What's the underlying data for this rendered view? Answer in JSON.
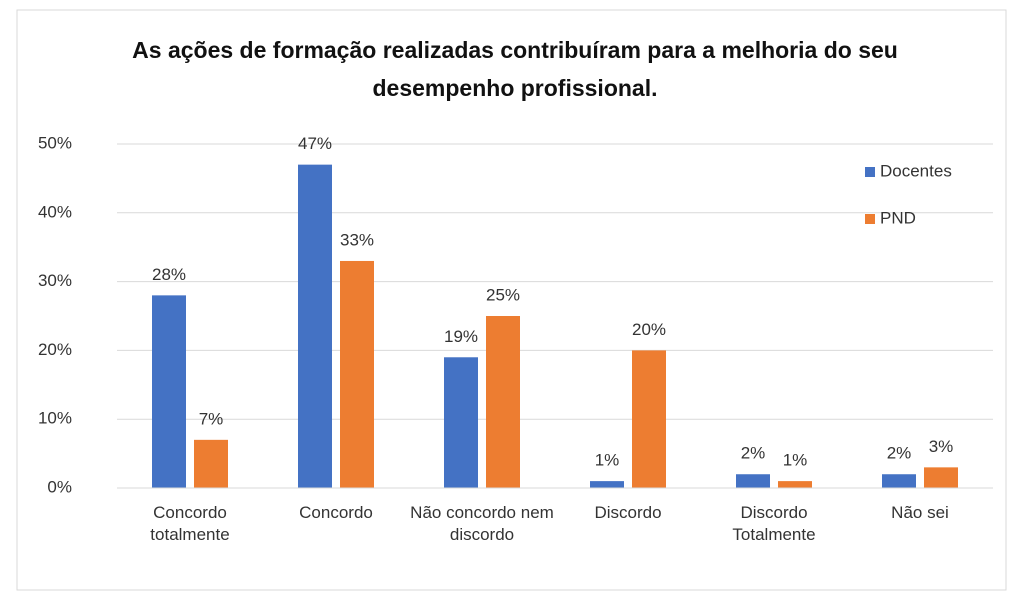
{
  "chart_data": {
    "type": "bar",
    "title": "As ações de formação realizadas contribuíram para a melhoria do seu desempenho profissional.",
    "categories": [
      "Concordo totalmente",
      "Concordo",
      "Não concordo nem discordo",
      "Discordo",
      "Discordo Totalmente",
      "Não sei"
    ],
    "series": [
      {
        "name": "Docentes",
        "color": "#4472c4",
        "values": [
          28,
          47,
          19,
          1,
          2,
          2
        ],
        "value_labels": [
          "28%",
          "47%",
          "19%",
          "1%",
          "2%",
          "2%"
        ]
      },
      {
        "name": "PND",
        "color": "#ed7d31",
        "values": [
          7,
          33,
          25,
          20,
          1,
          3
        ],
        "value_labels": [
          "7%",
          "33%",
          "25%",
          "20%",
          "1%",
          "3%"
        ]
      }
    ],
    "ylim": [
      0,
      50
    ],
    "yticks": [
      {
        "value": 0,
        "label": "0%"
      },
      {
        "value": 10,
        "label": "10%"
      },
      {
        "value": 20,
        "label": "20%"
      },
      {
        "value": 30,
        "label": "30%"
      },
      {
        "value": 40,
        "label": "40%"
      },
      {
        "value": 50,
        "label": "50%"
      }
    ],
    "grid": true,
    "legend": "top-right"
  }
}
